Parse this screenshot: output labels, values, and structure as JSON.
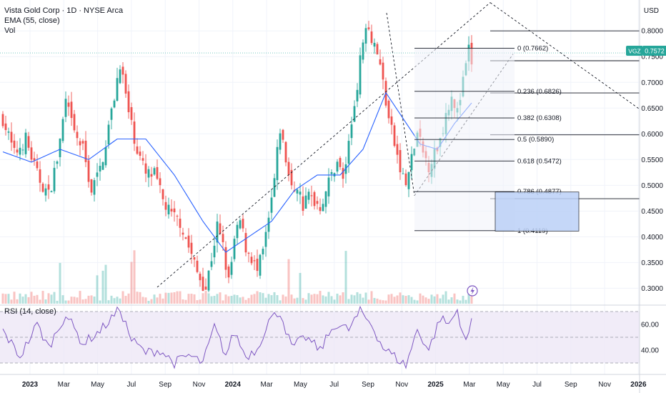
{
  "legend": {
    "symbol": "Vista Gold Corp · 1D · NYSE Arca",
    "ema": "EMA (55, close)",
    "vol": "Vol",
    "rsi": "RSI (14, close)"
  },
  "axis": {
    "currency": "USD"
  },
  "price_tag": {
    "ticker": "VGZ",
    "value": "0.7572"
  },
  "colors": {
    "up": "#26a69a",
    "down": "#ef5350",
    "ema": "#2962ff",
    "rsi": "#7e57c2",
    "fib_box": "#bcd1f7",
    "price_tag": "#26a69a"
  },
  "chart_data": {
    "type": "candlestick",
    "price_axis": {
      "ylim": [
        0.27,
        0.86
      ],
      "ticks": [
        "0.8000",
        "0.7500",
        "0.7000",
        "0.6500",
        "0.6000",
        "0.5500",
        "0.5000",
        "0.4500",
        "0.4000",
        "0.3500",
        "0.3000"
      ],
      "tick_values": [
        0.8,
        0.75,
        0.7,
        0.65,
        0.6,
        0.55,
        0.5,
        0.45,
        0.4,
        0.35,
        0.3
      ]
    },
    "rsi_axis": {
      "ticks": [
        "60.00",
        "40.00"
      ],
      "tick_values": [
        60,
        40
      ],
      "band": [
        30,
        70
      ]
    },
    "time_axis": [
      "2023",
      "Mar",
      "May",
      "Jul",
      "Sep",
      "Nov",
      "2024",
      "Mar",
      "May",
      "Jul",
      "Sep",
      "Nov",
      "2025",
      "Mar",
      "May",
      "Jul",
      "Sep",
      "Nov",
      "2026"
    ],
    "bold_time_labels": [
      "2023",
      "2024",
      "2025",
      "2026"
    ],
    "price_path": [
      [
        0,
        0.63
      ],
      [
        4,
        0.56
      ],
      [
        8,
        0.59
      ],
      [
        12,
        0.52
      ],
      [
        16,
        0.48
      ],
      [
        19,
        0.55
      ],
      [
        22,
        0.66
      ],
      [
        25,
        0.6
      ],
      [
        28,
        0.57
      ],
      [
        31,
        0.49
      ],
      [
        34,
        0.53
      ],
      [
        38,
        0.64
      ],
      [
        41,
        0.74
      ],
      [
        44,
        0.64
      ],
      [
        47,
        0.57
      ],
      [
        50,
        0.52
      ],
      [
        53,
        0.52
      ],
      [
        56,
        0.47
      ],
      [
        59,
        0.44
      ],
      [
        62,
        0.43
      ],
      [
        65,
        0.38
      ],
      [
        68,
        0.33
      ],
      [
        71,
        0.3
      ],
      [
        73,
        0.36
      ],
      [
        75,
        0.42
      ],
      [
        77,
        0.38
      ],
      [
        79,
        0.31
      ],
      [
        81,
        0.39
      ],
      [
        83,
        0.43
      ],
      [
        85,
        0.38
      ],
      [
        87,
        0.36
      ],
      [
        89,
        0.33
      ],
      [
        91,
        0.37
      ],
      [
        93,
        0.43
      ],
      [
        95,
        0.51
      ],
      [
        97,
        0.61
      ],
      [
        99,
        0.55
      ],
      [
        101,
        0.49
      ],
      [
        103,
        0.5
      ],
      [
        105,
        0.46
      ],
      [
        107,
        0.48
      ],
      [
        109,
        0.47
      ],
      [
        111,
        0.46
      ],
      [
        113,
        0.49
      ],
      [
        115,
        0.52
      ],
      [
        117,
        0.55
      ],
      [
        119,
        0.51
      ],
      [
        121,
        0.58
      ],
      [
        123,
        0.66
      ],
      [
        125,
        0.74
      ],
      [
        127,
        0.82
      ],
      [
        129,
        0.79
      ],
      [
        131,
        0.76
      ],
      [
        133,
        0.7
      ],
      [
        135,
        0.63
      ],
      [
        137,
        0.58
      ],
      [
        139,
        0.53
      ],
      [
        141,
        0.5
      ],
      [
        143,
        0.55
      ],
      [
        145,
        0.6
      ],
      [
        147,
        0.56
      ],
      [
        149,
        0.54
      ],
      [
        151,
        0.56
      ],
      [
        153,
        0.59
      ],
      [
        155,
        0.64
      ],
      [
        157,
        0.68
      ],
      [
        159,
        0.64
      ],
      [
        161,
        0.7
      ],
      [
        163,
        0.76
      ],
      [
        164,
        0.74
      ]
    ],
    "ema_path": [
      [
        0,
        0.565
      ],
      [
        10,
        0.545
      ],
      [
        20,
        0.57
      ],
      [
        30,
        0.55
      ],
      [
        40,
        0.59
      ],
      [
        50,
        0.59
      ],
      [
        60,
        0.52
      ],
      [
        70,
        0.43
      ],
      [
        78,
        0.37
      ],
      [
        86,
        0.4
      ],
      [
        94,
        0.43
      ],
      [
        102,
        0.49
      ],
      [
        110,
        0.52
      ],
      [
        118,
        0.52
      ],
      [
        126,
        0.57
      ],
      [
        134,
        0.68
      ],
      [
        140,
        0.63
      ],
      [
        146,
        0.58
      ],
      [
        152,
        0.57
      ],
      [
        158,
        0.62
      ],
      [
        164,
        0.66
      ]
    ],
    "rsi_path": [
      [
        0,
        55
      ],
      [
        6,
        35
      ],
      [
        12,
        60
      ],
      [
        16,
        42
      ],
      [
        22,
        68
      ],
      [
        28,
        45
      ],
      [
        34,
        55
      ],
      [
        41,
        72
      ],
      [
        45,
        48
      ],
      [
        50,
        38
      ],
      [
        55,
        40
      ],
      [
        60,
        30
      ],
      [
        65,
        36
      ],
      [
        70,
        30
      ],
      [
        74,
        58
      ],
      [
        78,
        36
      ],
      [
        81,
        54
      ],
      [
        85,
        35
      ],
      [
        89,
        41
      ],
      [
        93,
        63
      ],
      [
        97,
        70
      ],
      [
        101,
        42
      ],
      [
        106,
        50
      ],
      [
        111,
        40
      ],
      [
        116,
        60
      ],
      [
        121,
        56
      ],
      [
        125,
        70
      ],
      [
        129,
        60
      ],
      [
        133,
        42
      ],
      [
        137,
        35
      ],
      [
        141,
        28
      ],
      [
        145,
        56
      ],
      [
        149,
        40
      ],
      [
        153,
        65
      ],
      [
        156,
        60
      ],
      [
        159,
        71
      ],
      [
        162,
        45
      ],
      [
        164,
        63
      ]
    ],
    "fibonacci": [
      {
        "label": "0 (0.7662)",
        "price": 0.7662
      },
      {
        "label": "0.236 (0.6826)",
        "price": 0.6826
      },
      {
        "label": "0.382 (0.6308)",
        "price": 0.6308
      },
      {
        "label": "0.5 (0.5890)",
        "price": 0.589
      },
      {
        "label": "0.618 (0.5472)",
        "price": 0.5472
      },
      {
        "label": "0.786 (0.4877)",
        "price": 0.4877
      },
      {
        "label": "1 (0.4119)",
        "price": 0.4119
      }
    ],
    "horizontal_levels": [
      0.8,
      0.742,
      0.6795,
      0.598,
      0.474
    ],
    "target_box": [
      0.411,
      0.487
    ],
    "last_price": 0.7572,
    "grid": true
  }
}
